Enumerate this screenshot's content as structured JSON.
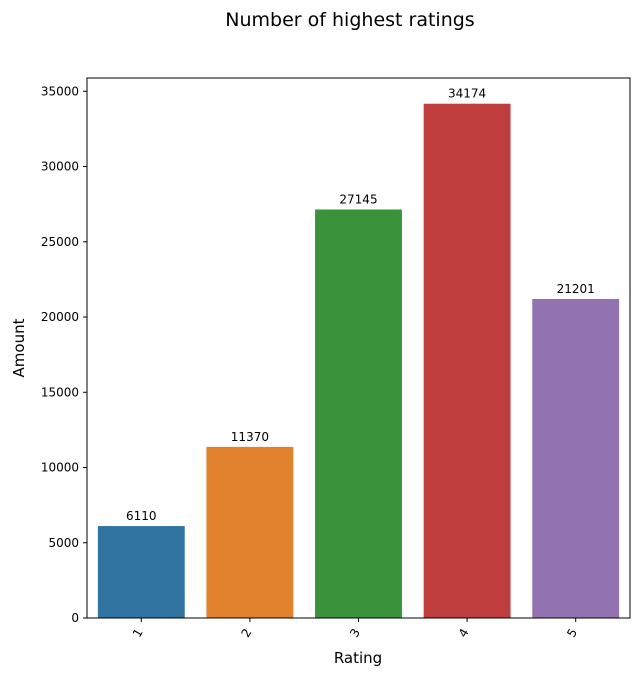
{
  "chart_data": {
    "type": "bar",
    "title": "Number of highest ratings",
    "xlabel": "Rating",
    "ylabel": "Amount",
    "categories": [
      "1",
      "2",
      "3",
      "4",
      "5"
    ],
    "values": [
      6110,
      11370,
      27145,
      34174,
      21201
    ],
    "colors": [
      "#3274a1",
      "#e1812c",
      "#3a923a",
      "#c03d3e",
      "#9372b2"
    ],
    "ylim": [
      0,
      35883
    ],
    "yticks": [
      0,
      5000,
      10000,
      15000,
      20000,
      25000,
      30000,
      35000
    ],
    "ytick_labels": [
      "0",
      "5000",
      "10000",
      "15000",
      "20000",
      "25000",
      "30000",
      "35000"
    ],
    "grid": false,
    "xtick_rotation_deg": -60
  }
}
